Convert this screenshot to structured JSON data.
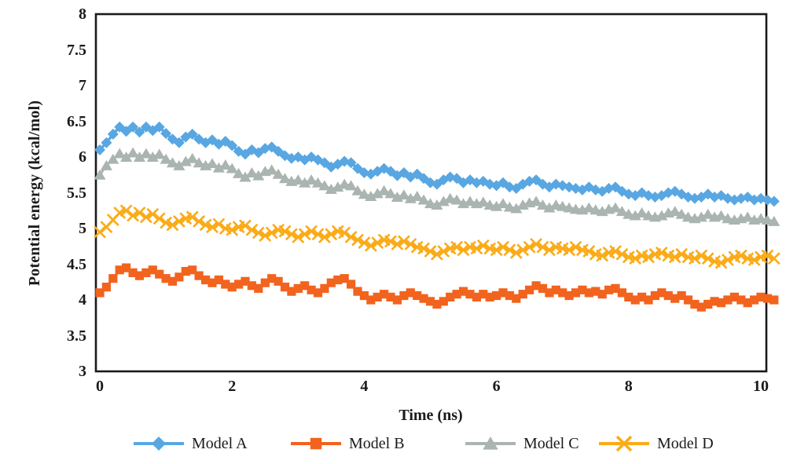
{
  "chart_data": {
    "type": "line",
    "title": "",
    "xlabel": "Time (ns)",
    "ylabel": "Potential energy (kcal/mol)",
    "xlim": [
      0,
      10
    ],
    "ylim": [
      3,
      8
    ],
    "grid": false,
    "legend_position": "bottom",
    "x_ticks": [
      0,
      2,
      4,
      6,
      8,
      10
    ],
    "x_tick_labels": [
      "0",
      "2",
      "4",
      "6",
      "8",
      "10"
    ],
    "y_ticks": [
      8,
      7.5,
      7,
      6.5,
      6,
      5.5,
      5,
      4.5,
      4,
      3.5,
      3
    ],
    "y_tick_labels": [
      "8",
      "7.5",
      "7",
      "6.5",
      "6",
      "5.5",
      "5",
      "4.5",
      "4",
      "3.5",
      "3"
    ],
    "x_start": 0,
    "x_step": 0.1,
    "axis_color": "#1a1a1a",
    "series": [
      {
        "name": "Model A",
        "marker": "diamond",
        "color": "#58a7e2",
        "values": [
          6.1,
          6.2,
          6.32,
          6.42,
          6.36,
          6.42,
          6.35,
          6.42,
          6.37,
          6.42,
          6.33,
          6.25,
          6.2,
          6.28,
          6.32,
          6.25,
          6.2,
          6.24,
          6.18,
          6.22,
          6.16,
          6.08,
          6.04,
          6.1,
          6.06,
          6.12,
          6.14,
          6.08,
          6.02,
          5.98,
          6.0,
          5.96,
          6.0,
          5.96,
          5.92,
          5.86,
          5.9,
          5.94,
          5.92,
          5.84,
          5.78,
          5.76,
          5.8,
          5.84,
          5.8,
          5.74,
          5.78,
          5.72,
          5.76,
          5.7,
          5.64,
          5.62,
          5.68,
          5.72,
          5.7,
          5.64,
          5.68,
          5.64,
          5.66,
          5.62,
          5.6,
          5.64,
          5.58,
          5.56,
          5.62,
          5.66,
          5.68,
          5.62,
          5.58,
          5.62,
          5.6,
          5.58,
          5.56,
          5.54,
          5.58,
          5.54,
          5.52,
          5.56,
          5.58,
          5.52,
          5.48,
          5.46,
          5.5,
          5.46,
          5.44,
          5.46,
          5.5,
          5.52,
          5.48,
          5.44,
          5.42,
          5.44,
          5.48,
          5.44,
          5.46,
          5.42,
          5.4,
          5.42,
          5.44,
          5.4,
          5.42,
          5.4,
          5.38
        ]
      },
      {
        "name": "Model B",
        "marker": "square",
        "color": "#f2631e",
        "values": [
          4.1,
          4.18,
          4.3,
          4.42,
          4.45,
          4.38,
          4.34,
          4.38,
          4.42,
          4.36,
          4.3,
          4.26,
          4.32,
          4.4,
          4.42,
          4.34,
          4.28,
          4.24,
          4.28,
          4.22,
          4.18,
          4.22,
          4.26,
          4.2,
          4.16,
          4.24,
          4.3,
          4.26,
          4.18,
          4.12,
          4.16,
          4.2,
          4.14,
          4.1,
          4.16,
          4.24,
          4.28,
          4.3,
          4.22,
          4.12,
          4.06,
          4.0,
          4.04,
          4.08,
          4.04,
          4.0,
          4.06,
          4.1,
          4.06,
          4.02,
          3.98,
          3.94,
          3.98,
          4.04,
          4.08,
          4.12,
          4.08,
          4.04,
          4.08,
          4.04,
          4.06,
          4.1,
          4.06,
          4.02,
          4.08,
          4.14,
          4.2,
          4.16,
          4.1,
          4.14,
          4.1,
          4.06,
          4.1,
          4.14,
          4.1,
          4.12,
          4.08,
          4.14,
          4.16,
          4.1,
          4.04,
          4.0,
          4.04,
          4.0,
          4.06,
          4.1,
          4.06,
          4.02,
          4.06,
          4.0,
          3.94,
          3.9,
          3.94,
          3.98,
          3.96,
          4.0,
          4.04,
          4.0,
          3.96,
          4.0,
          4.04,
          4.02,
          4.0
        ]
      },
      {
        "name": "Model C",
        "marker": "triangle",
        "color": "#aab4b0",
        "values": [
          5.75,
          5.88,
          5.97,
          6.05,
          6.0,
          6.06,
          6.0,
          6.05,
          6.0,
          6.04,
          5.97,
          5.92,
          5.88,
          5.94,
          5.98,
          5.92,
          5.88,
          5.91,
          5.85,
          5.89,
          5.84,
          5.77,
          5.72,
          5.78,
          5.74,
          5.8,
          5.82,
          5.76,
          5.7,
          5.66,
          5.68,
          5.64,
          5.68,
          5.64,
          5.6,
          5.55,
          5.58,
          5.62,
          5.6,
          5.53,
          5.48,
          5.45,
          5.49,
          5.53,
          5.49,
          5.44,
          5.47,
          5.42,
          5.45,
          5.4,
          5.35,
          5.33,
          5.38,
          5.42,
          5.4,
          5.35,
          5.38,
          5.35,
          5.37,
          5.33,
          5.31,
          5.35,
          5.3,
          5.28,
          5.33,
          5.36,
          5.38,
          5.33,
          5.29,
          5.33,
          5.31,
          5.29,
          5.27,
          5.26,
          5.29,
          5.26,
          5.24,
          5.27,
          5.29,
          5.24,
          5.2,
          5.18,
          5.22,
          5.18,
          5.16,
          5.18,
          5.22,
          5.24,
          5.2,
          5.16,
          5.14,
          5.16,
          5.2,
          5.16,
          5.18,
          5.14,
          5.12,
          5.14,
          5.16,
          5.12,
          5.14,
          5.12,
          5.1
        ]
      },
      {
        "name": "Model D",
        "marker": "x",
        "color": "#fbab18",
        "values": [
          4.95,
          5.02,
          5.12,
          5.22,
          5.25,
          5.18,
          5.22,
          5.16,
          5.2,
          5.14,
          5.08,
          5.05,
          5.1,
          5.14,
          5.16,
          5.1,
          5.05,
          5.02,
          5.06,
          5.0,
          4.98,
          5.02,
          5.04,
          4.98,
          4.94,
          4.9,
          4.94,
          4.98,
          4.96,
          4.92,
          4.88,
          4.92,
          4.96,
          4.92,
          4.88,
          4.92,
          4.96,
          4.94,
          4.88,
          4.84,
          4.8,
          4.76,
          4.8,
          4.84,
          4.82,
          4.78,
          4.82,
          4.78,
          4.74,
          4.72,
          4.68,
          4.64,
          4.68,
          4.72,
          4.74,
          4.7,
          4.74,
          4.72,
          4.76,
          4.72,
          4.7,
          4.74,
          4.7,
          4.66,
          4.7,
          4.74,
          4.78,
          4.74,
          4.7,
          4.74,
          4.72,
          4.7,
          4.74,
          4.7,
          4.68,
          4.64,
          4.62,
          4.66,
          4.68,
          4.64,
          4.6,
          4.58,
          4.62,
          4.6,
          4.64,
          4.66,
          4.62,
          4.6,
          4.64,
          4.6,
          4.58,
          4.62,
          4.58,
          4.54,
          4.52,
          4.56,
          4.6,
          4.62,
          4.58,
          4.56,
          4.6,
          4.62,
          4.58
        ]
      }
    ]
  }
}
